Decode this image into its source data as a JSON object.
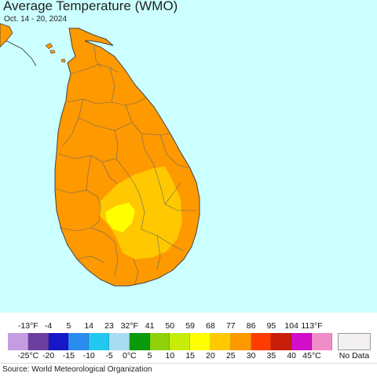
{
  "header": {
    "title": "Average Temperature (WMO)",
    "date_range": "Oct. 14 - 20, 2024"
  },
  "legend": {
    "fahrenheit_labels": [
      "-13°F",
      "-4",
      "5",
      "14",
      "23",
      "32°F",
      "41",
      "50",
      "59",
      "68",
      "77",
      "86",
      "95",
      "104",
      "113°F"
    ],
    "celsius_labels": [
      "-25°C",
      "-20",
      "-15",
      "-10",
      "-5",
      "0°C",
      "5",
      "10",
      "15",
      "20",
      "25",
      "30",
      "35",
      "40",
      "45°C"
    ],
    "colors": [
      "#c49de0",
      "#6b3fa0",
      "#1717c8",
      "#2b8cf0",
      "#22c8f0",
      "#a8dcf0",
      "#0a9a0a",
      "#8fd20a",
      "#c8ec0a",
      "#ffff00",
      "#ffc800",
      "#ff9900",
      "#ff3c00",
      "#c81e0a",
      "#d10ec8",
      "#f08cc8"
    ],
    "no_data_label": "No Data"
  },
  "map": {
    "sea_color": "#ccffff",
    "dominant_fill": "#ff9900",
    "warm_fill": "#ffc800",
    "hot_fill": "#ffff00",
    "border_color": "#555555"
  },
  "footer": {
    "source": "Source: World Meteorological Organization"
  }
}
